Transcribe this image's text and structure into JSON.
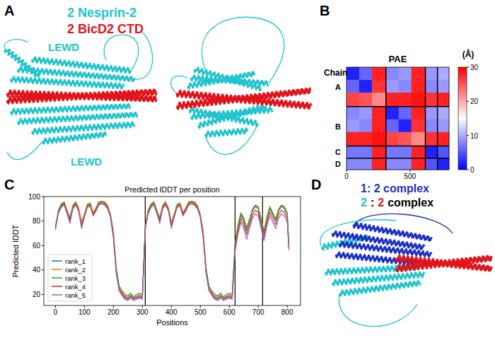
{
  "panels": [
    {
      "letter": "A",
      "legend": [
        {
          "text": "2 Nesprin-2",
          "color": "#21c4cc"
        },
        {
          "text": "2 BicD2 CTD",
          "color": "#e0141a"
        }
      ],
      "labels": [
        "LEWD",
        "LEWD"
      ]
    },
    {
      "letter": "B"
    },
    {
      "letter": "C"
    },
    {
      "letter": "D",
      "legend": [
        {
          "parts": [
            {
              "text": "1: 2 complex",
              "color": "#1c2fc4"
            }
          ]
        },
        {
          "parts": [
            {
              "text": "2",
              "color": "#21c4cc"
            },
            {
              "text": ":",
              "color": "#000000"
            },
            {
              "text": "2",
              "color": "#e0141a"
            },
            {
              "text": "complex",
              "color": "#000000"
            }
          ]
        }
      ]
    }
  ],
  "chart_data": [
    {
      "type": "heatmap",
      "title": "PAE",
      "y_label": "Chain",
      "x_edges": [
        0,
        100,
        200,
        310,
        410,
        510,
        620,
        715,
        806
      ],
      "cells": [
        [
          2,
          6,
          28,
          8,
          9,
          28,
          9,
          10
        ],
        [
          6,
          2,
          27,
          9,
          8,
          28,
          8,
          9
        ],
        [
          26,
          25,
          22,
          28,
          28,
          29,
          27,
          28
        ],
        [
          8,
          9,
          28,
          2,
          6,
          28,
          9,
          10
        ],
        [
          9,
          8,
          28,
          6,
          2,
          27,
          8,
          9
        ],
        [
          28,
          28,
          29,
          26,
          25,
          22,
          27,
          28
        ],
        [
          7,
          7,
          28,
          7,
          7,
          28,
          2,
          5
        ],
        [
          8,
          8,
          28,
          8,
          8,
          28,
          5,
          2
        ]
      ],
      "xlim": [
        0,
        806
      ],
      "xticks": [
        0,
        500
      ],
      "tick_labels": "x",
      "chains": [
        {
          "label": "A",
          "start": 0,
          "end": 310
        },
        {
          "label": "B",
          "start": 310,
          "end": 620
        },
        {
          "label": "C",
          "start": 620,
          "end": 715
        },
        {
          "label": "D",
          "start": 715,
          "end": 806
        }
      ],
      "colorbar": {
        "label": "(Å)",
        "range": [
          0,
          30
        ],
        "ticks": [
          0,
          10,
          20,
          30
        ]
      }
    },
    {
      "type": "line",
      "title": "Predicted lDDT per position",
      "x_label": "Positions",
      "y_label": "Predicted lDDT",
      "x": [
        0,
        10,
        20,
        30,
        40,
        50,
        60,
        70,
        80,
        90,
        100,
        110,
        120,
        130,
        140,
        150,
        160,
        170,
        180,
        190,
        200,
        210,
        220,
        230,
        240,
        250,
        260,
        270,
        280,
        290,
        300,
        310,
        320,
        330,
        340,
        350,
        360,
        370,
        380,
        390,
        400,
        410,
        420,
        430,
        440,
        450,
        460,
        470,
        480,
        490,
        500,
        510,
        520,
        530,
        540,
        550,
        560,
        570,
        580,
        590,
        600,
        610,
        620,
        630,
        640,
        650,
        660,
        670,
        680,
        690,
        700,
        710,
        720,
        730,
        740,
        750,
        760,
        770,
        780,
        790,
        800,
        806
      ],
      "series": [
        {
          "name": "rank_1",
          "color": "#1f77b4",
          "values": [
            75,
            88,
            93,
            95,
            88,
            82,
            92,
            95,
            90,
            78,
            85,
            93,
            94,
            86,
            90,
            95,
            96,
            95,
            92,
            85,
            70,
            40,
            25,
            22,
            18,
            17,
            19,
            17,
            18,
            19,
            18,
            75,
            88,
            93,
            95,
            88,
            82,
            92,
            95,
            90,
            78,
            85,
            93,
            94,
            86,
            90,
            95,
            96,
            95,
            92,
            85,
            70,
            40,
            25,
            22,
            18,
            17,
            19,
            17,
            18,
            19,
            18,
            60,
            75,
            85,
            80,
            72,
            80,
            88,
            92,
            90,
            80,
            70,
            82,
            90,
            85,
            80,
            88,
            92,
            90,
            85,
            58
          ]
        },
        {
          "name": "rank_2",
          "color": "#ff7f0e",
          "values": [
            76,
            89,
            94,
            96,
            89,
            83,
            93,
            96,
            91,
            79,
            86,
            94,
            95,
            87,
            91,
            96,
            96,
            96,
            93,
            86,
            72,
            42,
            26,
            21,
            19,
            18,
            20,
            18,
            19,
            20,
            19,
            76,
            89,
            94,
            96,
            89,
            83,
            93,
            96,
            91,
            79,
            86,
            94,
            95,
            87,
            91,
            96,
            96,
            96,
            93,
            86,
            72,
            42,
            26,
            21,
            19,
            18,
            20,
            18,
            19,
            20,
            19,
            62,
            77,
            87,
            83,
            75,
            82,
            90,
            93,
            92,
            82,
            72,
            84,
            92,
            87,
            82,
            90,
            93,
            92,
            87,
            60
          ]
        },
        {
          "name": "rank_3",
          "color": "#2ca02c",
          "values": [
            74,
            88,
            94,
            95,
            88,
            81,
            92,
            95,
            89,
            77,
            84,
            93,
            94,
            85,
            90,
            95,
            96,
            95,
            92,
            84,
            69,
            41,
            27,
            23,
            20,
            19,
            21,
            18,
            20,
            21,
            20,
            74,
            88,
            94,
            95,
            88,
            81,
            92,
            95,
            89,
            77,
            84,
            93,
            94,
            85,
            90,
            95,
            96,
            95,
            92,
            84,
            69,
            41,
            27,
            23,
            20,
            19,
            21,
            18,
            20,
            21,
            20,
            61,
            76,
            86,
            82,
            73,
            81,
            89,
            93,
            91,
            81,
            71,
            83,
            91,
            86,
            81,
            89,
            93,
            91,
            86,
            59
          ]
        },
        {
          "name": "rank_4",
          "color": "#d62728",
          "values": [
            74,
            87,
            92,
            94,
            87,
            80,
            91,
            94,
            89,
            76,
            84,
            92,
            93,
            85,
            89,
            94,
            95,
            94,
            91,
            84,
            68,
            38,
            24,
            20,
            17,
            16,
            18,
            16,
            17,
            18,
            17,
            74,
            87,
            92,
            94,
            87,
            80,
            91,
            94,
            89,
            76,
            84,
            92,
            93,
            85,
            89,
            94,
            95,
            94,
            91,
            84,
            68,
            38,
            24,
            20,
            17,
            16,
            18,
            16,
            17,
            18,
            17,
            58,
            72,
            82,
            77,
            69,
            77,
            85,
            89,
            87,
            77,
            67,
            79,
            87,
            82,
            77,
            85,
            89,
            87,
            82,
            57
          ]
        },
        {
          "name": "rank_5",
          "color": "#9467bd",
          "values": [
            73,
            86,
            91,
            93,
            86,
            78,
            90,
            93,
            88,
            74,
            83,
            91,
            92,
            84,
            88,
            93,
            94,
            93,
            90,
            83,
            66,
            37,
            23,
            19,
            16,
            15,
            17,
            15,
            16,
            17,
            16,
            73,
            86,
            91,
            93,
            86,
            78,
            90,
            93,
            88,
            74,
            83,
            91,
            92,
            84,
            88,
            93,
            94,
            93,
            90,
            83,
            66,
            37,
            23,
            19,
            16,
            15,
            17,
            15,
            16,
            17,
            16,
            55,
            69,
            79,
            74,
            65,
            74,
            82,
            86,
            84,
            74,
            64,
            76,
            84,
            79,
            74,
            82,
            86,
            84,
            79,
            56
          ]
        }
      ],
      "xlim": [
        -40,
        846
      ],
      "ylim": [
        11,
        100
      ],
      "xticks": [
        0,
        100,
        200,
        300,
        400,
        500,
        600,
        700,
        800
      ],
      "yticks": [
        20,
        40,
        60,
        80,
        100
      ],
      "legend": "lower left",
      "chain_boundaries": [
        310,
        620,
        715
      ]
    }
  ]
}
